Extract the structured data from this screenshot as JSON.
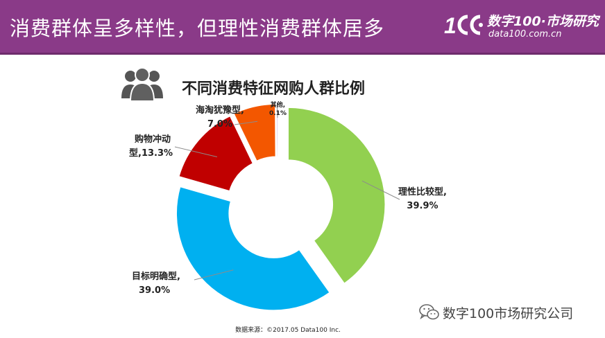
{
  "header": {
    "title": "消费群体呈多样性，但理性消费群体居多",
    "logo_cn": "数字100·市场研究",
    "logo_en": "data100.com.cn"
  },
  "chart_data": {
    "type": "pie",
    "title": "不同消费特征网购人群比例",
    "slices": [
      {
        "name": "理性比较型",
        "value": 39.9,
        "line1": "理性比较型,",
        "line2": "39.9%",
        "color": "#92d050"
      },
      {
        "name": "目标明确型",
        "value": 39.0,
        "line1": "目标明确型,",
        "line2": "39.0%",
        "color": "#00b0f0"
      },
      {
        "name": "购物冲动型",
        "value": 13.3,
        "line1": "购物冲动",
        "line2": "型,13.3%",
        "color": "#c00000"
      },
      {
        "name": "海淘犹豫型",
        "value": 7.0,
        "line1": "海淘犹豫型,",
        "line2": "7.0%",
        "color": "#f35700"
      },
      {
        "name": "其他",
        "value": 0.1,
        "line1": "其他,",
        "line2": "0.1%",
        "color": "#7030a0"
      }
    ]
  },
  "footer": {
    "source": "数据来源：©2017.05 Data100 Inc.",
    "wechat": "数字100市场研究公司"
  }
}
